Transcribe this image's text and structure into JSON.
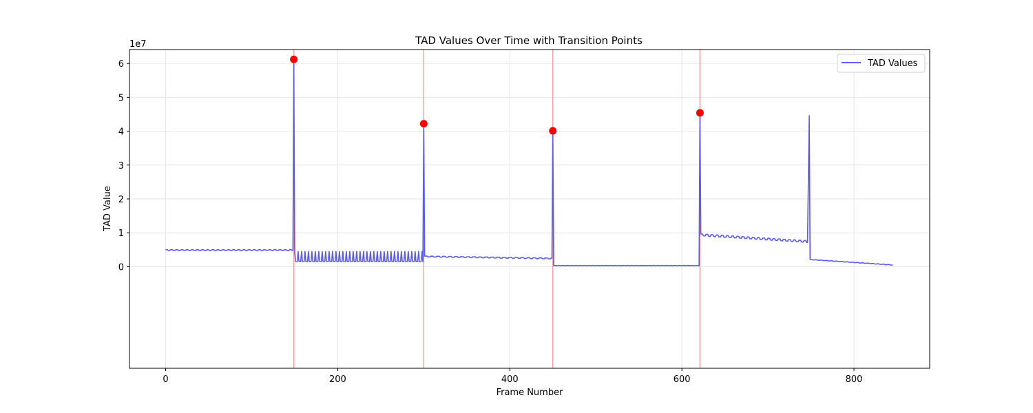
{
  "chart_data": {
    "type": "line",
    "title": "TAD Values Over Time with Transition Points",
    "xlabel": "Frame Number",
    "ylabel": "TAD Value",
    "y_offset_label": "1e7",
    "xlim": [
      -42,
      888
    ],
    "ylim": [
      -30000000,
      64100000
    ],
    "xticks": [
      0,
      200,
      400,
      600,
      800
    ],
    "yticks": [
      0,
      10000000,
      20000000,
      30000000,
      40000000,
      50000000,
      60000000
    ],
    "xtick_labels": [
      "0",
      "200",
      "400",
      "600",
      "800"
    ],
    "ytick_labels": [
      "0",
      "1",
      "2",
      "3",
      "4",
      "5",
      "6"
    ],
    "grid": true,
    "legend": {
      "position": "top-right",
      "entries": [
        "TAD Values"
      ]
    },
    "series": [
      {
        "name": "TAD Values",
        "color": "#5b5bf0",
        "segments": [
          {
            "x_start": 0,
            "x_end": 148,
            "base": 4900000,
            "osc_amp": 200000,
            "osc_period": 6,
            "end": 4900000
          },
          {
            "x_start": 150,
            "x_end": 299,
            "base": 1500000,
            "osc_amp": 3000000,
            "osc_period": 4,
            "end": 1500000
          },
          {
            "x_start": 301,
            "x_end": 449,
            "base": 3000000,
            "osc_amp": 250000,
            "osc_period": 7,
            "end": 2400000
          },
          {
            "x_start": 451,
            "x_end": 620,
            "base": 300000,
            "osc_amp": 80000,
            "osc_period": 5,
            "end": 300000
          },
          {
            "x_start": 622,
            "x_end": 746,
            "base": 9400000,
            "osc_amp": 500000,
            "osc_period": 6,
            "end": 7400000
          },
          {
            "x_start": 749,
            "x_end": 845,
            "base": 2100000,
            "osc_amp": 100000,
            "osc_period": 6,
            "end": 500000
          }
        ],
        "spikes": [
          {
            "x": 149,
            "y": 61200000
          },
          {
            "x": 300,
            "y": 42200000
          },
          {
            "x": 450,
            "y": 40100000
          },
          {
            "x": 621,
            "y": 45400000
          },
          {
            "x": 748,
            "y": 44600000
          }
        ]
      }
    ],
    "transition_points": [
      {
        "x": 149,
        "y": 61200000
      },
      {
        "x": 300,
        "y": 42200000
      },
      {
        "x": 450,
        "y": 40100000
      },
      {
        "x": 621,
        "y": 45400000
      }
    ],
    "transition_line_color": "#f5a0a0",
    "transition_marker_color": "#ff0000"
  }
}
